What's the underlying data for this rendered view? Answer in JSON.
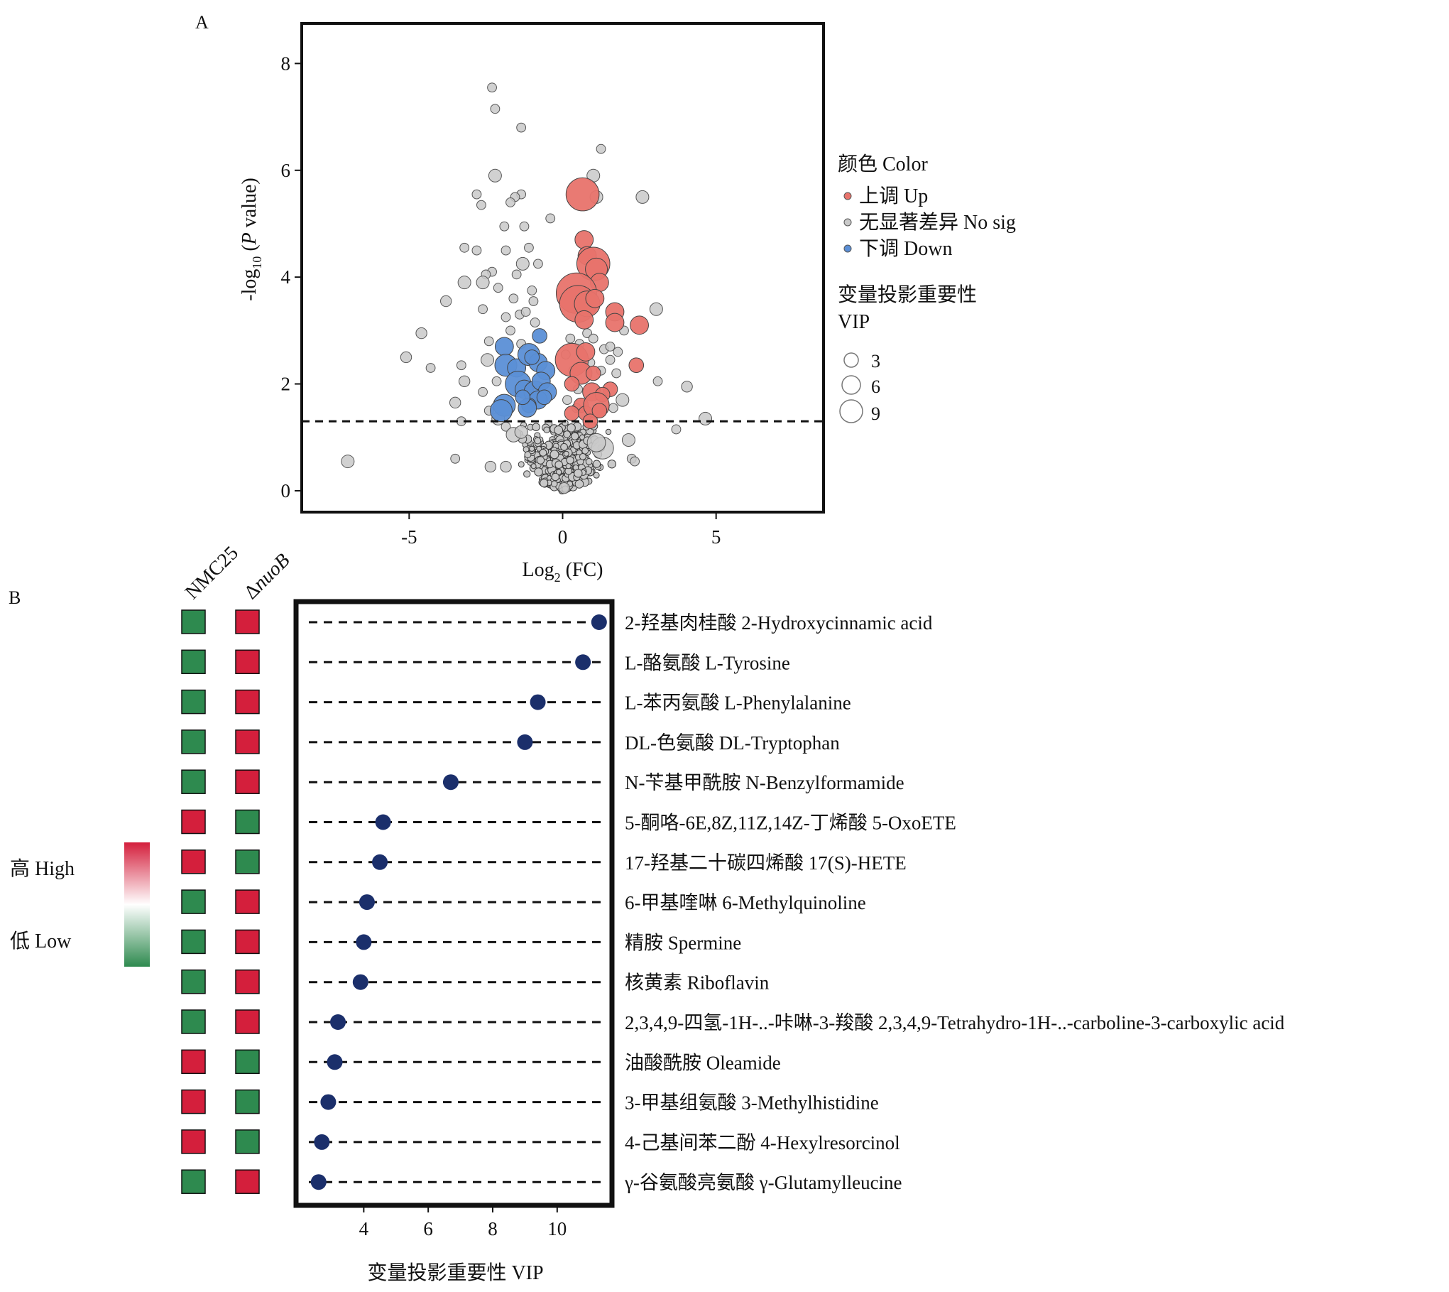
{
  "panel_labels": {
    "a": "A",
    "b": "B"
  },
  "colors": {
    "up": "#e8736b",
    "nosig": "#c9c9c9",
    "down": "#5b8fd6",
    "lollipop": "#1b2f6b",
    "high": "#d41f3c",
    "low": "#2e8a4f"
  },
  "chart_data": [
    {
      "type": "scatter",
      "panel": "A",
      "xlabel": "Log2 (FC)",
      "xlabel_main": "Log",
      "xlabel_sub": "2",
      "xlabel_tail": " (FC)",
      "ylabel_pre": "-log",
      "ylabel_sub": "10",
      "ylabel_mid": " (",
      "ylabel_it": "P",
      "ylabel_post": " value)",
      "xlim": [
        -8.5,
        8.5
      ],
      "ylim": [
        -0.4,
        8.75
      ],
      "xticks": [
        -5,
        0,
        5
      ],
      "xtick_labels": [
        "-5",
        "0",
        "5"
      ],
      "yticks": [
        0,
        2,
        4,
        6,
        8
      ],
      "ytick_labels": [
        "0",
        "2",
        "4",
        "6",
        "8"
      ],
      "threshold_y": 1.3,
      "legend_color_title": "颜色 Color",
      "legend_color_items": [
        {
          "key": "up",
          "label": "上调 Up"
        },
        {
          "key": "nosig",
          "label": "无显著差异 No sig"
        },
        {
          "key": "down",
          "label": "下调 Down"
        }
      ],
      "legend_size_title_1": "变量投影重要性",
      "legend_size_title_2": "VIP",
      "legend_size_items": [
        {
          "label": "3",
          "vip": 3
        },
        {
          "label": "6",
          "vip": 6
        },
        {
          "label": "9",
          "vip": 9
        }
      ],
      "series": [
        {
          "key": "up",
          "points": [
            [
              0.65,
              5.55,
              8
            ],
            [
              0.7,
              4.7,
              4
            ],
            [
              0.8,
              4.4,
              4
            ],
            [
              1.0,
              4.25,
              8
            ],
            [
              1.1,
              4.15,
              5
            ],
            [
              1.2,
              3.9,
              4
            ],
            [
              0.45,
              3.7,
              10
            ],
            [
              0.5,
              3.5,
              9
            ],
            [
              0.8,
              3.5,
              6
            ],
            [
              1.05,
              3.6,
              4
            ],
            [
              1.7,
              3.35,
              4
            ],
            [
              1.7,
              3.15,
              4
            ],
            [
              2.5,
              3.1,
              4
            ],
            [
              0.7,
              3.2,
              4
            ],
            [
              0.3,
              2.45,
              8
            ],
            [
              0.6,
              2.2,
              5
            ],
            [
              0.75,
              2.6,
              4
            ],
            [
              1.0,
              2.2,
              3
            ],
            [
              0.3,
              2.0,
              3
            ],
            [
              0.95,
              1.85,
              4
            ],
            [
              1.55,
              1.9,
              3
            ],
            [
              1.3,
              1.8,
              3
            ],
            [
              2.4,
              2.35,
              3
            ],
            [
              0.6,
              1.6,
              3
            ],
            [
              0.3,
              1.45,
              3
            ],
            [
              0.75,
              1.45,
              3
            ],
            [
              1.1,
              1.6,
              6
            ],
            [
              0.9,
              1.3,
              3
            ],
            [
              1.2,
              1.5,
              3
            ]
          ]
        },
        {
          "key": "down",
          "points": [
            [
              -1.9,
              2.7,
              4
            ],
            [
              -1.85,
              2.35,
              5
            ],
            [
              -1.5,
              2.3,
              4
            ],
            [
              -1.1,
              2.55,
              5
            ],
            [
              -0.8,
              2.4,
              4
            ],
            [
              -0.55,
              2.25,
              4
            ],
            [
              -1.45,
              2.0,
              6
            ],
            [
              -1.25,
              1.9,
              4
            ],
            [
              -0.9,
              1.85,
              5
            ],
            [
              -0.7,
              2.05,
              4
            ],
            [
              -0.5,
              1.85,
              4
            ],
            [
              -0.8,
              1.7,
              4
            ],
            [
              -1.1,
              1.6,
              3
            ],
            [
              -1.9,
              1.6,
              5
            ],
            [
              -2.0,
              1.5,
              5
            ],
            [
              -1.15,
              1.55,
              4
            ],
            [
              -0.75,
              2.9,
              3
            ],
            [
              -1.0,
              2.5,
              3
            ],
            [
              -1.3,
              1.75,
              3
            ],
            [
              -0.6,
              1.75,
              3
            ]
          ]
        },
        {
          "key": "nosig",
          "points": [
            [
              -2.3,
              7.55,
              1.5
            ],
            [
              -2.2,
              7.15,
              1.5
            ],
            [
              -1.35,
              6.8,
              1.5
            ],
            [
              1.25,
              6.4,
              1.5
            ],
            [
              -2.2,
              5.9,
              2.5
            ],
            [
              1.0,
              5.9,
              2.5
            ],
            [
              1.1,
              5.5,
              2.5
            ],
            [
              2.6,
              5.5,
              2.5
            ],
            [
              -1.35,
              5.55,
              1.5
            ],
            [
              -1.55,
              5.5,
              1.5
            ],
            [
              -1.7,
              5.4,
              1.5
            ],
            [
              -2.8,
              5.55,
              1.5
            ],
            [
              -2.65,
              5.35,
              1.5
            ],
            [
              -0.4,
              5.1,
              1.5
            ],
            [
              -1.25,
              4.95,
              1.5
            ],
            [
              -1.9,
              4.95,
              1.5
            ],
            [
              -1.85,
              4.5,
              1.5
            ],
            [
              -3.2,
              4.55,
              1.5
            ],
            [
              -2.8,
              4.5,
              1.5
            ],
            [
              -1.1,
              4.55,
              1.5
            ],
            [
              -0.8,
              4.25,
              1.5
            ],
            [
              -1.3,
              4.25,
              2.5
            ],
            [
              -2.3,
              4.1,
              1.5
            ],
            [
              -2.5,
              4.05,
              1.5
            ],
            [
              -1.5,
              4.05,
              1.5
            ],
            [
              -3.2,
              3.9,
              2.5
            ],
            [
              -2.6,
              3.9,
              2.5
            ],
            [
              -1.0,
              3.75,
              1.5
            ],
            [
              -2.1,
              3.8,
              1.5
            ],
            [
              -3.8,
              3.55,
              2
            ],
            [
              -2.6,
              3.4,
              1.5
            ],
            [
              -1.6,
              3.6,
              1.5
            ],
            [
              -1.85,
              3.25,
              1.5
            ],
            [
              -1.4,
              3.3,
              1.5
            ],
            [
              -1.2,
              3.35,
              1.5
            ],
            [
              -0.95,
              3.55,
              1.5
            ],
            [
              3.05,
              3.4,
              2.5
            ],
            [
              2.0,
              3.0,
              1.5
            ],
            [
              -0.9,
              3.15,
              1.5
            ],
            [
              -1.7,
              3.0,
              1.5
            ],
            [
              -2.4,
              2.8,
              1.5
            ],
            [
              -1.35,
              2.75,
              1.5
            ],
            [
              -4.6,
              2.95,
              2
            ],
            [
              -5.1,
              2.5,
              2
            ],
            [
              -4.3,
              2.3,
              1.5
            ],
            [
              -3.3,
              2.35,
              1.5
            ],
            [
              -2.45,
              2.45,
              2.5
            ],
            [
              -3.2,
              2.05,
              2
            ],
            [
              -2.15,
              2.05,
              1.5
            ],
            [
              3.1,
              2.05,
              1.5
            ],
            [
              4.05,
              1.95,
              2
            ],
            [
              1.95,
              1.7,
              2.5
            ],
            [
              0.25,
              2.85,
              1.5
            ],
            [
              0.55,
              2.75,
              1.5
            ],
            [
              0.8,
              2.95,
              1.5
            ],
            [
              1.0,
              2.85,
              1.5
            ],
            [
              1.35,
              2.65,
              1.5
            ],
            [
              1.55,
              2.7,
              1.5
            ],
            [
              1.8,
              2.6,
              1.5
            ],
            [
              0.1,
              2.55,
              1.5
            ],
            [
              0.35,
              2.25,
              1.5
            ],
            [
              0.9,
              2.4,
              1.5
            ],
            [
              1.25,
              2.25,
              1.5
            ],
            [
              1.55,
              2.45,
              1.5
            ],
            [
              1.75,
              2.2,
              1.5
            ],
            [
              0.5,
              1.9,
              1.5
            ],
            [
              0.15,
              1.7,
              1.5
            ],
            [
              0.45,
              1.55,
              1.5
            ],
            [
              1.65,
              1.55,
              1.5
            ],
            [
              -3.5,
              1.65,
              2
            ],
            [
              -2.6,
              1.85,
              1.5
            ],
            [
              -2.4,
              1.5,
              1.5
            ],
            [
              -3.3,
              1.3,
              1.5
            ],
            [
              -2.1,
              1.35,
              2.5
            ],
            [
              -1.85,
              1.2,
              1.5
            ],
            [
              4.65,
              1.35,
              2.5
            ],
            [
              3.7,
              1.15,
              1.5
            ],
            [
              -7.0,
              0.55,
              2.5
            ],
            [
              -3.5,
              0.6,
              1.5
            ],
            [
              2.15,
              0.95,
              2.5
            ],
            [
              2.25,
              0.6,
              1.5
            ],
            [
              2.35,
              0.55,
              1.5
            ],
            [
              1.3,
              0.8,
              5
            ],
            [
              1.1,
              0.9,
              4
            ],
            [
              -2.35,
              0.45,
              2
            ],
            [
              -1.85,
              0.45,
              2
            ],
            [
              -1.6,
              1.05,
              3
            ],
            [
              -1.35,
              1.1,
              2.5
            ],
            [
              0.05,
              0.05,
              2
            ]
          ]
        }
      ]
    },
    {
      "type": "lollipop",
      "panel": "B",
      "xlabel": "变量投影重要性 VIP",
      "xlim": [
        1.9,
        11.7
      ],
      "xticks": [
        4,
        6,
        8,
        10
      ],
      "xtick_labels": [
        "4",
        "6",
        "8",
        "10"
      ],
      "heat_headers": [
        "NMC25",
        "ΔnuoB"
      ],
      "heat_header_prefix": "Δ",
      "heat_header_italic": "nuoB",
      "heat_legend_high": "高 High",
      "heat_legend_low": "低 Low",
      "rows": [
        {
          "label": "2-羟基肉桂酸 2-Hydroxycinnamic acid",
          "vip": 11.3,
          "heat": [
            "low",
            "high"
          ]
        },
        {
          "label": "L-酪氨酸 L-Tyrosine",
          "vip": 10.8,
          "heat": [
            "low",
            "high"
          ]
        },
        {
          "label": "L-苯丙氨酸 L-Phenylalanine",
          "vip": 9.4,
          "heat": [
            "low",
            "high"
          ]
        },
        {
          "label": "DL-色氨酸 DL-Tryptophan",
          "vip": 9.0,
          "heat": [
            "low",
            "high"
          ]
        },
        {
          "label": "N-苄基甲酰胺 N-Benzylformamide",
          "vip": 6.7,
          "heat": [
            "low",
            "high"
          ]
        },
        {
          "label": "5-酮咯-6E,8Z,11Z,14Z-丁烯酸 5-OxoETE",
          "vip": 4.6,
          "heat": [
            "high",
            "low"
          ]
        },
        {
          "label": "17-羟基二十碳四烯酸 17(S)-HETE",
          "vip": 4.5,
          "heat": [
            "high",
            "low"
          ]
        },
        {
          "label": "6-甲基喹啉 6-Methylquinoline",
          "vip": 4.1,
          "heat": [
            "low",
            "high"
          ]
        },
        {
          "label": "精胺 Spermine",
          "vip": 4.0,
          "heat": [
            "low",
            "high"
          ]
        },
        {
          "label": "核黄素 Riboflavin",
          "vip": 3.9,
          "heat": [
            "low",
            "high"
          ]
        },
        {
          "label": "2,3,4,9-四氢-1H-..-咔啉-3-羧酸 2,3,4,9-Tetrahydro-1H-..-carboline-3-carboxylic acid",
          "vip": 3.2,
          "heat": [
            "low",
            "high"
          ]
        },
        {
          "label": "油酸酰胺 Oleamide",
          "vip": 3.1,
          "heat": [
            "high",
            "low"
          ]
        },
        {
          "label": "3-甲基组氨酸 3-Methylhistidine",
          "vip": 2.9,
          "heat": [
            "high",
            "low"
          ]
        },
        {
          "label": "4-己基间苯二酚 4-Hexylresorcinol",
          "vip": 2.7,
          "heat": [
            "high",
            "low"
          ]
        },
        {
          "label": "γ-谷氨酸亮氨酸 γ-Glutamylleucine",
          "vip": 2.6,
          "heat": [
            "low",
            "high"
          ]
        }
      ]
    }
  ]
}
